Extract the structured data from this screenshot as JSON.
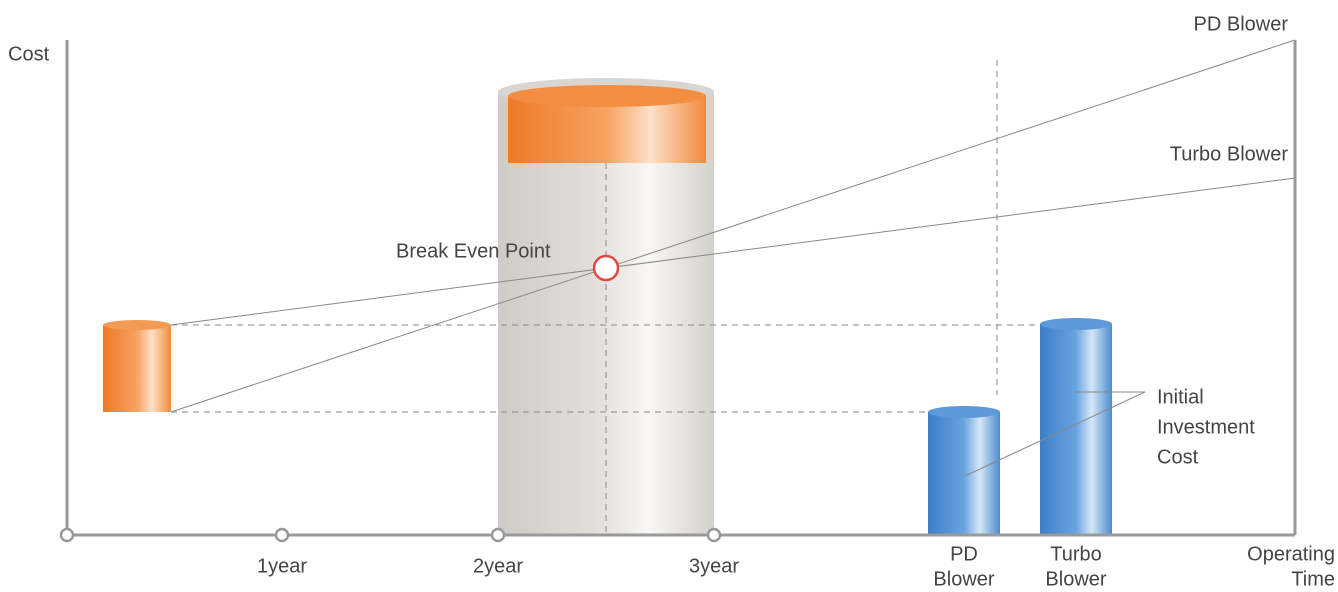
{
  "axes": {
    "y_label": "Cost",
    "x_label": [
      "Operating",
      "Time"
    ]
  },
  "lines": [
    {
      "label": "PD Blower"
    },
    {
      "label": "Turbo Blower"
    }
  ],
  "break_even": {
    "label": "Break Even Point"
  },
  "x_ticks": [
    "1year",
    "2year",
    "3year"
  ],
  "bar_labels": [
    [
      "PD",
      "Blower"
    ],
    [
      "Turbo",
      "Blower"
    ]
  ],
  "annotation": [
    "Initial",
    "Investment",
    "Cost"
  ]
}
